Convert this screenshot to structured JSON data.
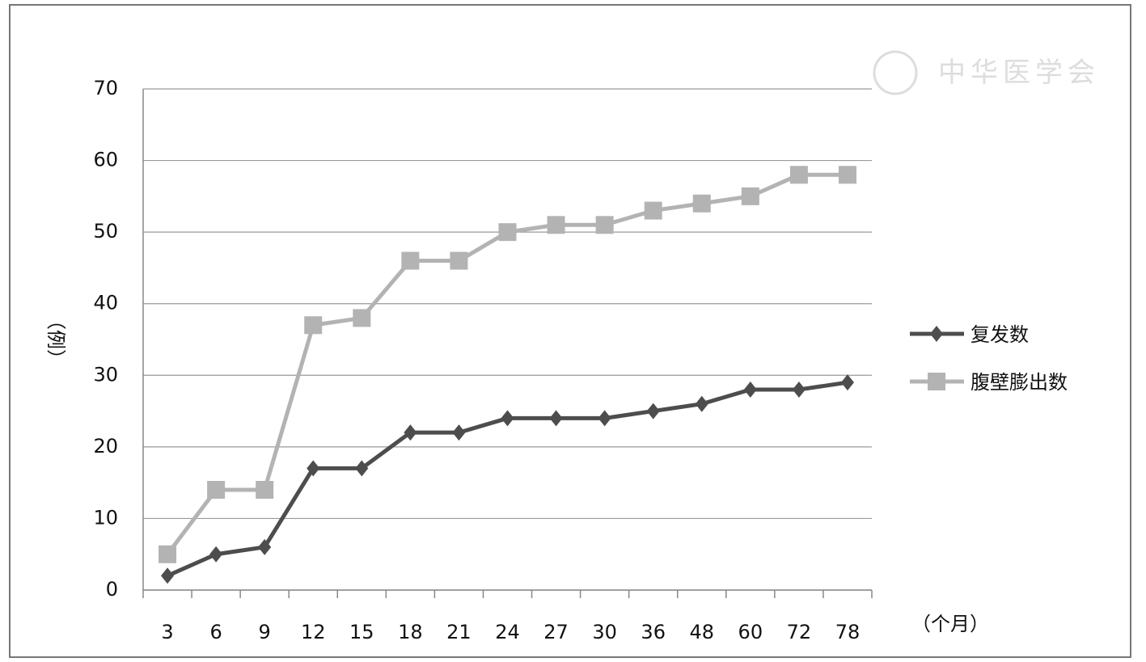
{
  "chart_data": {
    "type": "line",
    "y_label": "（例）",
    "x_label": "（个月）",
    "watermark": "中华医学会",
    "categories": [
      "3",
      "6",
      "9",
      "12",
      "15",
      "18",
      "21",
      "24",
      "27",
      "30",
      "36",
      "48",
      "60",
      "72",
      "78"
    ],
    "series": [
      {
        "name": "复发数",
        "color": "#4d4d4d",
        "marker": "diamond",
        "values": [
          2,
          5,
          6,
          17,
          17,
          22,
          22,
          24,
          24,
          24,
          25,
          26,
          28,
          28,
          29
        ]
      },
      {
        "name": "腹壁膨出数",
        "color": "#b3b3b3",
        "marker": "square",
        "values": [
          5,
          14,
          14,
          37,
          38,
          46,
          46,
          50,
          51,
          51,
          53,
          54,
          55,
          58,
          58
        ]
      }
    ],
    "ylim": [
      0,
      70
    ],
    "yticks": [
      0,
      10,
      20,
      30,
      40,
      50,
      60,
      70
    ],
    "grid": true,
    "legend": "right"
  }
}
